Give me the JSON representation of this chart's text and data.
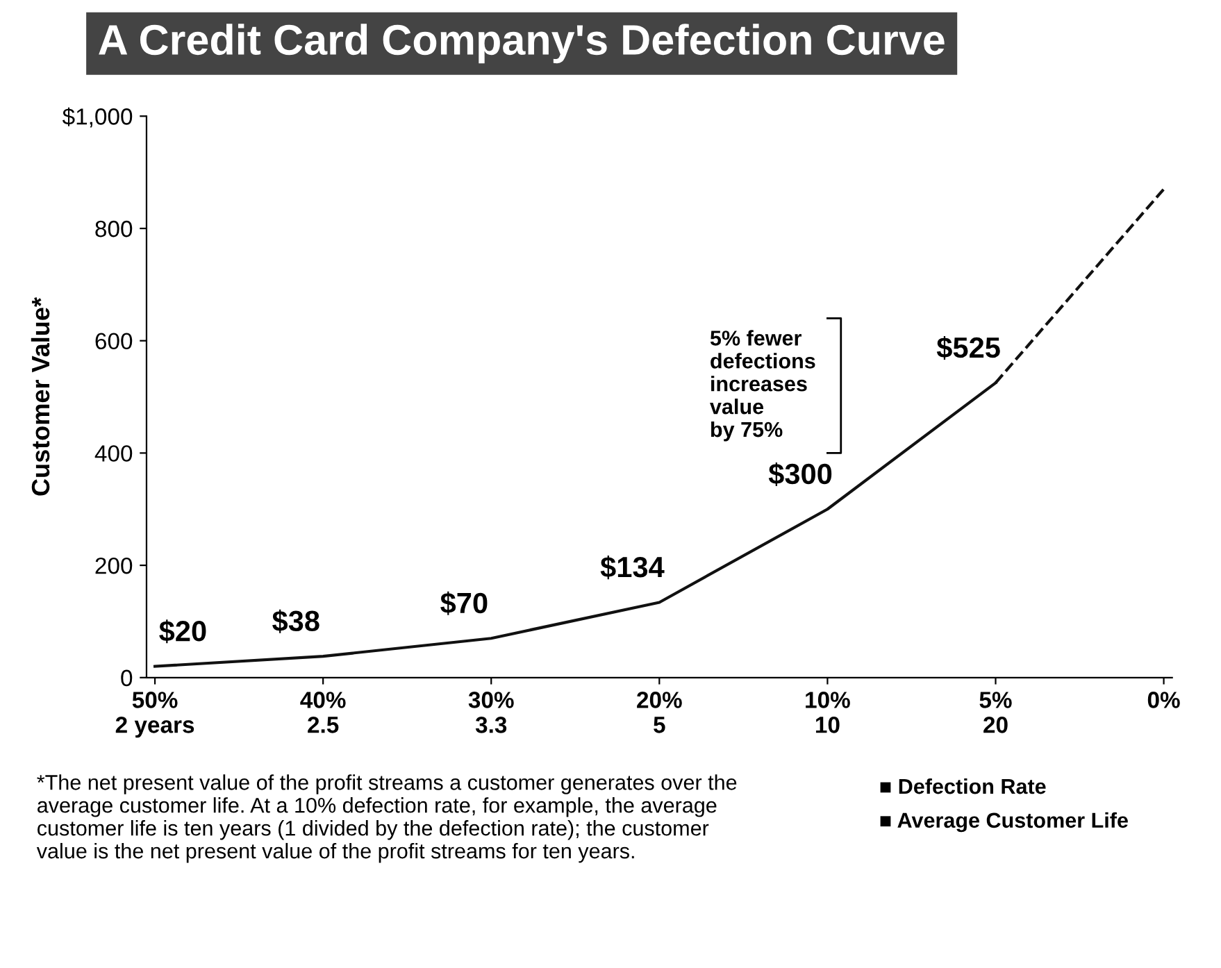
{
  "chart_data": {
    "type": "line",
    "title": "A Credit Card Company's Defection Curve",
    "ylabel": "Customer Value*",
    "categories": [
      "50%\n2 years",
      "40%\n2.5",
      "30%\n3.3",
      "20%\n5",
      "10%\n10",
      "5%\n20",
      "0%"
    ],
    "series": [
      {
        "color": "#111111",
        "line_style": "solid",
        "values": [
          20,
          38,
          70,
          134,
          300,
          525,
          null
        ],
        "value_labels": [
          "$20",
          "$38",
          "$70",
          "$134",
          "$300",
          "$525",
          null
        ]
      },
      {
        "color": "#111111",
        "line_style": "dashed",
        "values": [
          null,
          null,
          null,
          null,
          null,
          525,
          870
        ]
      }
    ],
    "ylim": [
      0,
      1000
    ],
    "yticks": [
      0,
      200,
      400,
      600,
      800,
      {
        "value": 1000,
        "label": "$1,000"
      }
    ],
    "grid": false,
    "marker": "none",
    "annotations": [
      "5% fewer\ndefections\nincreases\nvalue\nby 75%",
      "*The net present value of the profit streams a customer generates over the\naverage customer life. At a 10% defection rate, for example, the average\ncustomer life is ten years (1 divided by the defection rate); the customer\nvalue is the net present value of the profit streams for ten years.",
      "■ Defection Rate",
      "■ Average Customer Life"
    ]
  }
}
